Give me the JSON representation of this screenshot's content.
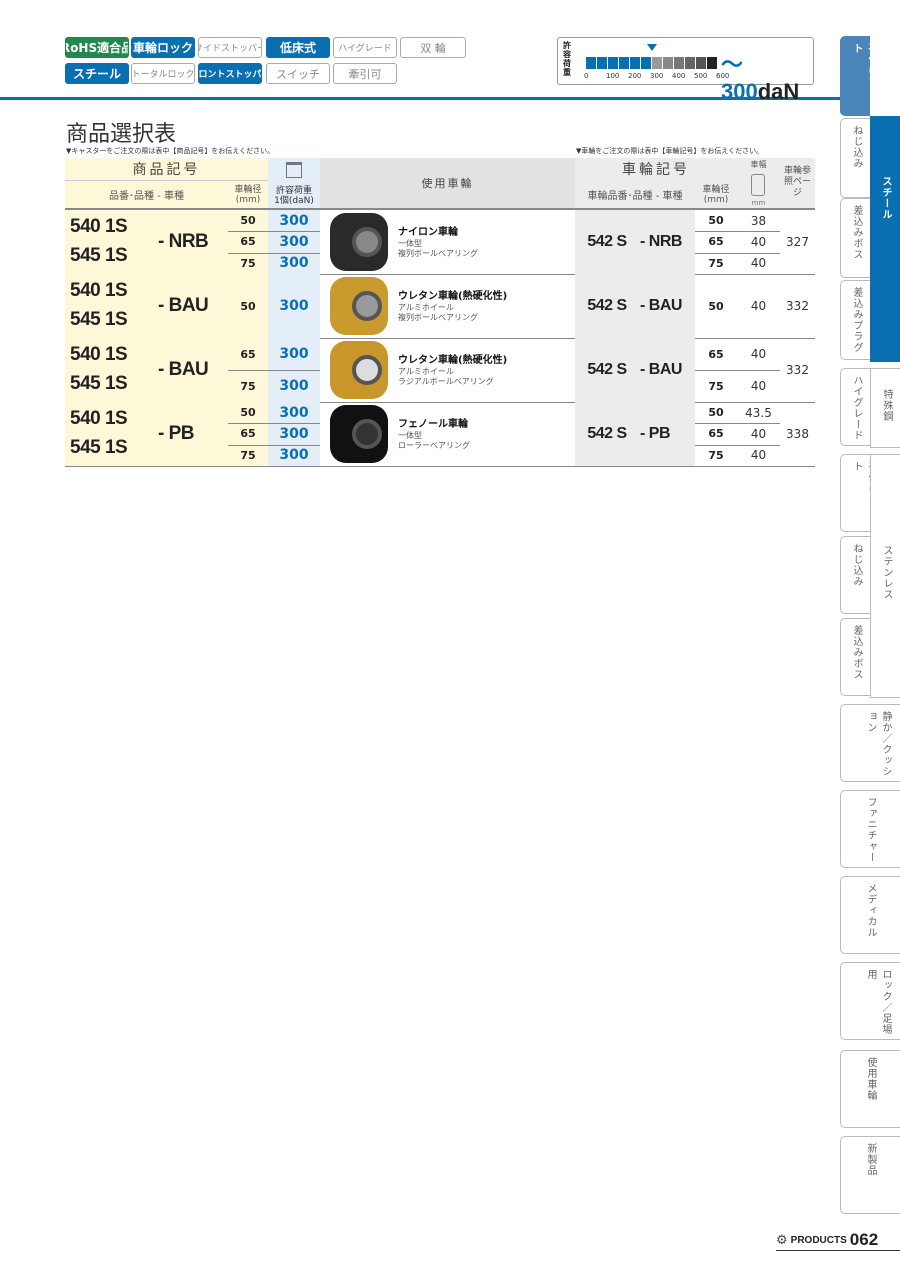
{
  "badges": [
    {
      "label": "RoHS適合品",
      "on": true
    },
    {
      "label": "車輪ロック",
      "on": true
    },
    {
      "label": "サイドストッパー",
      "on": false
    },
    {
      "label": "低床式",
      "on": true
    },
    {
      "label": "ハイグレード",
      "on": false
    },
    {
      "label": "双 輪",
      "on": false
    },
    {
      "label": "スチール",
      "on": true
    },
    {
      "label": "トータルロック",
      "on": false
    },
    {
      "label": "フロントストッパー",
      "on": true
    },
    {
      "label": "スイッチ",
      "on": false
    },
    {
      "label": "牽引可",
      "on": false
    }
  ],
  "gauge": {
    "label": "許容荷重",
    "ticks": [
      "0",
      "100",
      "200",
      "300",
      "400",
      "500",
      "600"
    ],
    "value": 300,
    "max": 600,
    "readout_prefix": "～300",
    "readout_unit": "daN"
  },
  "title": "商品選択表",
  "note_left": "▼キャスターをご注文の際は表中【商品記号】をお伝えください。",
  "note_right": "▼車輪をご注文の際は表中【車輪記号】をお伝えください。",
  "header": {
    "product_code": "商品記号",
    "part_type": "品番･品種 - 車種",
    "wheel_dia": "車輪径",
    "mm": "(mm)",
    "load": "許容荷重",
    "load_unit": "1個(daN)",
    "wheel_used": "使用車輪",
    "wheel_code": "車輪記号",
    "wheel_part": "車輪品番･品種 - 車種",
    "width": "車幅",
    "width_mm": "mm",
    "ref_page": "車輪参照ページ"
  },
  "rows": [
    {
      "codes": [
        "540 1S",
        "545 1S"
      ],
      "type": "- NRB",
      "dias": [
        "50",
        "65",
        "75"
      ],
      "loads": [
        "300",
        "300",
        "300"
      ],
      "wheel_name": "ナイロン車輪",
      "wheel_d1": "一体型",
      "wheel_d2": "複列ボールベアリング",
      "wcode": "542 S",
      "wtype": "- NRB",
      "wdias": [
        "50",
        "65",
        "75"
      ],
      "widths": [
        "38",
        "40",
        "40"
      ],
      "page": "327"
    },
    {
      "codes": [
        "540 1S",
        "545 1S"
      ],
      "type": "- BAU",
      "dias": [
        "50"
      ],
      "loads": [
        "300"
      ],
      "wheel_name": "ウレタン車輪(熱硬化性)",
      "wheel_d1": "アルミホイール",
      "wheel_d2": "複列ボールベアリング",
      "wcode": "542 S",
      "wtype": "- BAU",
      "wdias": [
        "50"
      ],
      "widths": [
        "40"
      ],
      "page": "332"
    },
    {
      "codes": [
        "540 1S",
        "545 1S"
      ],
      "type": "- BAU",
      "dias": [
        "65",
        "75"
      ],
      "loads": [
        "300",
        "300"
      ],
      "wheel_name": "ウレタン車輪(熱硬化性)",
      "wheel_d1": "アルミホイール",
      "wheel_d2": "ラジアルボールベアリング",
      "wcode": "542 S",
      "wtype": "- BAU",
      "wdias": [
        "65",
        "75"
      ],
      "widths": [
        "40",
        "40"
      ],
      "page": "332"
    },
    {
      "codes": [
        "540 1S",
        "545 1S"
      ],
      "type": "- PB",
      "dias": [
        "50",
        "65",
        "75"
      ],
      "loads": [
        "300",
        "300",
        "300"
      ],
      "wheel_name": "フェノール車輪",
      "wheel_d1": "一体型",
      "wheel_d2": "ローラーベアリング",
      "wcode": "542 S",
      "wtype": "- PB",
      "wdias": [
        "50",
        "65",
        "75"
      ],
      "widths": [
        "43.5",
        "40",
        "40"
      ],
      "page": "338"
    }
  ],
  "sidebar": {
    "tabs": [
      "平付けプレート",
      "ねじ込み",
      "差込みボス",
      "差込みプラグ",
      "ハイグレード",
      "平付けプレート",
      "ねじ込み",
      "差込みボス",
      "静か／クッション",
      "ファニチャー",
      "メディカル",
      "ロック／足場用",
      "使用車輪",
      "新製品"
    ],
    "active": 0,
    "categories": [
      "スチール",
      "特殊鋼",
      "ステンレス"
    ]
  },
  "footer": {
    "brand": "PRODUCTS",
    "page": "062"
  },
  "colors": {
    "accent": "#0a6fb0",
    "rohs": "#1f8a4c",
    "product_bg": "#fdf8d8",
    "load_bg": "#e4eef8",
    "wheel_bg": "#ececec"
  }
}
